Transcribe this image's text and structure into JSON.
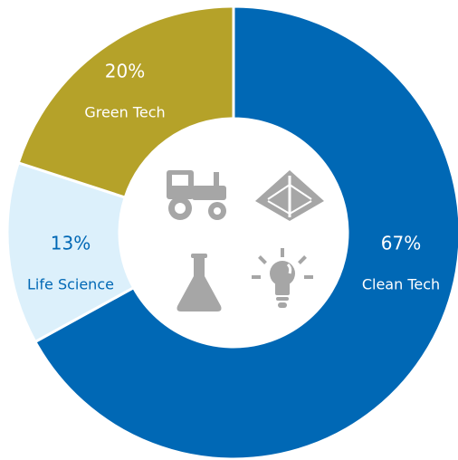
{
  "chart_data": {
    "type": "pie",
    "categories": [
      "Clean Tech",
      "Life Science",
      "Green Tech"
    ],
    "values": [
      67,
      13,
      20
    ],
    "value_labels": [
      "67%",
      "13%",
      "20%"
    ],
    "colors": [
      "#0068b5",
      "#dcf0fb",
      "#b5a229"
    ]
  }
}
